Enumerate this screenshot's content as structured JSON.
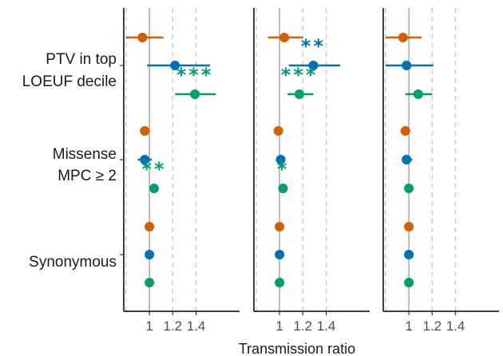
{
  "chart_data": {
    "type": "forest",
    "xlabel": "Transmission ratio",
    "xticks": [
      1,
      1.2,
      1.4
    ],
    "xtick_labels": [
      "1",
      "1.2",
      "1.4"
    ],
    "xlim": [
      0.78,
      1.6
    ],
    "gridlines_dashed": [
      0.8,
      1.2,
      1.4
    ],
    "reference_line": 1,
    "series_colors": [
      "#d55e00",
      "#0072b2",
      "#009e73"
    ],
    "groups": [
      {
        "label_lines": [
          "PTV in top",
          "LOEUF decile"
        ]
      },
      {
        "label_lines": [
          "Missense",
          "MPC ≥ 2"
        ]
      },
      {
        "label_lines": [
          "Synonymous"
        ]
      }
    ],
    "panels": [
      {
        "points": [
          [
            {
              "est": 0.94,
              "lo": 0.8,
              "hi": 1.12,
              "sig": ""
            },
            {
              "est": 1.22,
              "lo": 0.98,
              "hi": 1.52,
              "sig": ""
            },
            {
              "est": 1.39,
              "lo": 1.22,
              "hi": 1.57,
              "sig": "***"
            }
          ],
          [
            {
              "est": 0.96,
              "lo": 0.92,
              "hi": 1.0,
              "sig": ""
            },
            {
              "est": 0.96,
              "lo": 0.9,
              "hi": 1.02,
              "sig": ""
            },
            {
              "est": 1.04,
              "lo": 1.01,
              "hi": 1.07,
              "sig": "**"
            }
          ],
          [
            {
              "est": 1.0,
              "lo": 0.99,
              "hi": 1.01,
              "sig": ""
            },
            {
              "est": 1.0,
              "lo": 0.99,
              "hi": 1.01,
              "sig": ""
            },
            {
              "est": 1.0,
              "lo": 0.99,
              "hi": 1.01,
              "sig": ""
            }
          ]
        ]
      },
      {
        "points": [
          [
            {
              "est": 1.04,
              "lo": 0.9,
              "hi": 1.2,
              "sig": ""
            },
            {
              "est": 1.29,
              "lo": 1.08,
              "hi": 1.52,
              "sig": "**"
            },
            {
              "est": 1.17,
              "lo": 1.07,
              "hi": 1.29,
              "sig": "***"
            }
          ],
          [
            {
              "est": 0.99,
              "lo": 0.96,
              "hi": 1.03,
              "sig": ""
            },
            {
              "est": 1.01,
              "lo": 0.97,
              "hi": 1.05,
              "sig": ""
            },
            {
              "est": 1.03,
              "lo": 1.01,
              "hi": 1.05,
              "sig": "*"
            }
          ],
          [
            {
              "est": 1.0,
              "lo": 0.99,
              "hi": 1.01,
              "sig": ""
            },
            {
              "est": 1.0,
              "lo": 0.99,
              "hi": 1.01,
              "sig": ""
            },
            {
              "est": 1.0,
              "lo": 0.99,
              "hi": 1.01,
              "sig": ""
            }
          ]
        ]
      },
      {
        "points": [
          [
            {
              "est": 0.95,
              "lo": 0.8,
              "hi": 1.11,
              "sig": ""
            },
            {
              "est": 0.98,
              "lo": 0.8,
              "hi": 1.21,
              "sig": ""
            },
            {
              "est": 1.08,
              "lo": 0.97,
              "hi": 1.2,
              "sig": ""
            }
          ],
          [
            {
              "est": 0.97,
              "lo": 0.94,
              "hi": 1.01,
              "sig": ""
            },
            {
              "est": 0.98,
              "lo": 0.94,
              "hi": 1.03,
              "sig": ""
            },
            {
              "est": 1.0,
              "lo": 0.98,
              "hi": 1.02,
              "sig": ""
            }
          ],
          [
            {
              "est": 1.0,
              "lo": 0.99,
              "hi": 1.01,
              "sig": ""
            },
            {
              "est": 1.0,
              "lo": 0.99,
              "hi": 1.01,
              "sig": ""
            },
            {
              "est": 1.0,
              "lo": 0.99,
              "hi": 1.01,
              "sig": ""
            }
          ]
        ]
      }
    ]
  }
}
